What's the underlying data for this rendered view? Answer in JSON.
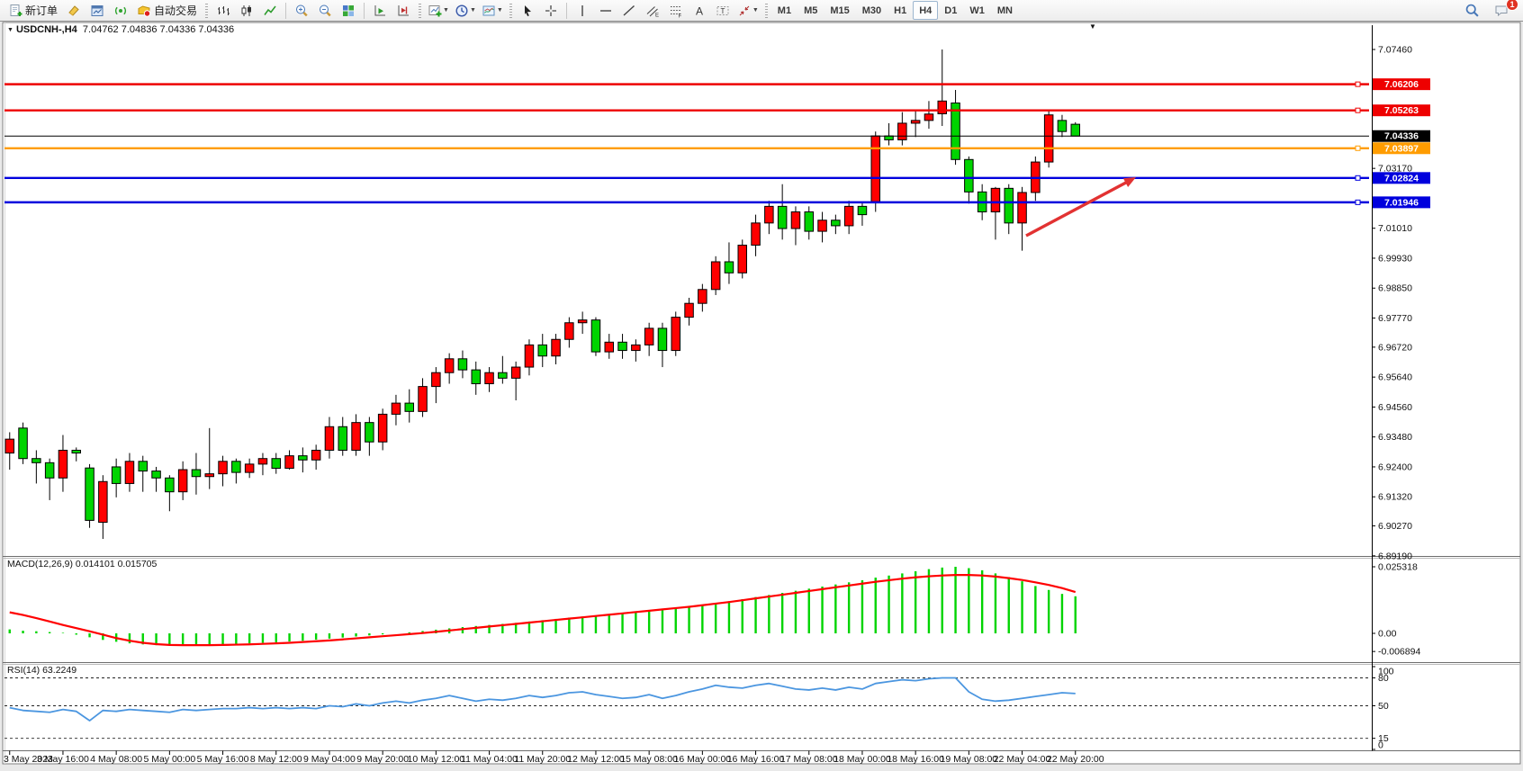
{
  "toolbar": {
    "new_order_label": "新订单",
    "auto_trading_label": "自动交易",
    "timeframes": [
      "M1",
      "M5",
      "M15",
      "M30",
      "H1",
      "H4",
      "D1",
      "W1",
      "MN"
    ],
    "active_timeframe": "H4",
    "notification_count": "1",
    "icons": [
      "new-order",
      "eraser",
      "chart-window",
      "signal",
      "auto-trading",
      "bar-chart",
      "candlestick-chart",
      "line-chart",
      "zoom-in",
      "zoom-out",
      "tile-windows",
      "auto-scroll",
      "chart-shift",
      "indicators",
      "periods",
      "templates",
      "cursor",
      "crosshair",
      "vertical-line",
      "horizontal-line",
      "trendline",
      "equidistant-channel",
      "fibonacci-retracement",
      "text",
      "text-label",
      "arrow-objects",
      "search",
      "chat"
    ]
  },
  "chart_window": {
    "menu_arrow": "▼",
    "symbol_period": "USDCNH-,H4",
    "ohlc": "7.04762 7.04836 7.04336 7.04336"
  },
  "chart_data": {
    "type": "candlestick",
    "symbol": "USDCNH",
    "timeframe": "H4",
    "up_color": "#ff0000",
    "down_color": "#00d400",
    "x_labels": [
      "3 May 2023",
      "3 May 16:00",
      "4 May 08:00",
      "5 May 00:00",
      "5 May 16:00",
      "8 May 12:00",
      "9 May 04:00",
      "9 May 20:00",
      "10 May 12:00",
      "11 May 04:00",
      "11 May 20:00",
      "12 May 12:00",
      "15 May 08:00",
      "16 May 00:00",
      "16 May 16:00",
      "17 May 08:00",
      "18 May 00:00",
      "18 May 16:00",
      "19 May 08:00",
      "22 May 04:00",
      "22 May 20:00"
    ],
    "price_axis_ticks": [
      "7.07460",
      "7.03170",
      "7.01010",
      "6.99930",
      "6.98850",
      "6.97770",
      "6.96720",
      "6.95640",
      "6.94560",
      "6.93480",
      "6.92400",
      "6.91320",
      "6.90270",
      "6.89190"
    ],
    "levels": [
      {
        "price": "7.06206",
        "color": "#ee0000",
        "kind": "resistance"
      },
      {
        "price": "7.05263",
        "color": "#ee0000",
        "kind": "resistance"
      },
      {
        "price": "7.04336",
        "color": "#000000",
        "kind": "current-price"
      },
      {
        "price": "7.03897",
        "color": "#ff9c00",
        "kind": "pivot"
      },
      {
        "price": "7.02824",
        "color": "#0000dd",
        "kind": "support"
      },
      {
        "price": "7.01946",
        "color": "#0000dd",
        "kind": "support"
      }
    ],
    "annotation_arrow": {
      "from": [
        1140,
        262
      ],
      "to": [
        1262,
        197
      ],
      "color": "#e23232"
    },
    "candles": [
      [
        6.929,
        6.9365,
        6.923,
        6.934
      ],
      [
        6.938,
        6.94,
        6.925,
        6.927
      ],
      [
        6.927,
        6.93,
        6.918,
        6.9255
      ],
      [
        6.9255,
        6.927,
        6.912,
        6.92
      ],
      [
        6.92,
        6.9355,
        6.915,
        6.93
      ],
      [
        6.93,
        6.931,
        6.926,
        6.929
      ],
      [
        6.9236,
        6.925,
        6.902,
        6.9047
      ],
      [
        6.904,
        6.921,
        6.898,
        6.9187
      ],
      [
        6.924,
        6.927,
        6.913,
        6.918
      ],
      [
        6.918,
        6.929,
        6.915,
        6.926
      ],
      [
        6.926,
        6.928,
        6.915,
        6.9225
      ],
      [
        6.9225,
        6.924,
        6.915,
        6.92
      ],
      [
        6.92,
        6.921,
        6.908,
        6.915
      ],
      [
        6.915,
        6.926,
        6.912,
        6.923
      ],
      [
        6.923,
        6.929,
        6.914,
        6.9205
      ],
      [
        6.9205,
        6.938,
        6.916,
        6.9215
      ],
      [
        6.9215,
        6.928,
        6.917,
        6.926
      ],
      [
        6.926,
        6.927,
        6.918,
        6.922
      ],
      [
        6.922,
        6.927,
        6.92,
        6.925
      ],
      [
        6.925,
        6.929,
        6.921,
        6.927
      ],
      [
        6.927,
        6.929,
        6.9215,
        6.9235
      ],
      [
        6.9235,
        6.93,
        6.923,
        6.928
      ],
      [
        6.928,
        6.931,
        6.922,
        6.9265
      ],
      [
        6.9265,
        6.932,
        6.923,
        6.93
      ],
      [
        6.93,
        6.942,
        6.927,
        6.9385
      ],
      [
        6.9385,
        6.942,
        6.928,
        6.93
      ],
      [
        6.93,
        6.943,
        6.928,
        6.94
      ],
      [
        6.94,
        6.942,
        6.928,
        6.933
      ],
      [
        6.933,
        6.945,
        6.93,
        6.943
      ],
      [
        6.943,
        6.95,
        6.939,
        6.947
      ],
      [
        6.947,
        6.952,
        6.94,
        6.944
      ],
      [
        6.944,
        6.956,
        6.942,
        6.953
      ],
      [
        6.953,
        6.96,
        6.947,
        6.958
      ],
      [
        6.958,
        6.965,
        6.954,
        6.963
      ],
      [
        6.963,
        6.966,
        6.956,
        6.959
      ],
      [
        6.959,
        6.962,
        6.95,
        6.954
      ],
      [
        6.954,
        6.96,
        6.951,
        6.958
      ],
      [
        6.958,
        6.964,
        6.954,
        6.956
      ],
      [
        6.956,
        6.962,
        6.948,
        6.96
      ],
      [
        6.96,
        6.97,
        6.957,
        6.968
      ],
      [
        6.968,
        6.972,
        6.96,
        6.964
      ],
      [
        6.964,
        6.972,
        6.961,
        6.97
      ],
      [
        6.97,
        6.978,
        6.967,
        6.976
      ],
      [
        6.976,
        6.98,
        6.972,
        6.977
      ],
      [
        6.977,
        6.978,
        6.964,
        6.9655
      ],
      [
        6.9655,
        6.972,
        6.963,
        6.969
      ],
      [
        6.969,
        6.972,
        6.963,
        6.966
      ],
      [
        6.966,
        6.97,
        6.962,
        6.968
      ],
      [
        6.968,
        6.976,
        6.964,
        6.974
      ],
      [
        6.974,
        6.976,
        6.96,
        6.966
      ],
      [
        6.966,
        6.98,
        6.964,
        6.978
      ],
      [
        6.978,
        6.985,
        6.975,
        6.983
      ],
      [
        6.983,
        6.99,
        6.98,
        6.988
      ],
      [
        6.988,
        7.0,
        6.986,
        6.998
      ],
      [
        6.998,
        7.005,
        6.99,
        6.994
      ],
      [
        6.994,
        7.006,
        6.992,
        7.004
      ],
      [
        7.004,
        7.015,
        7.0,
        7.012
      ],
      [
        7.012,
        7.02,
        7.008,
        7.018
      ],
      [
        7.018,
        7.026,
        7.006,
        7.01
      ],
      [
        7.01,
        7.018,
        7.004,
        7.016
      ],
      [
        7.016,
        7.018,
        7.006,
        7.009
      ],
      [
        7.009,
        7.016,
        7.005,
        7.013
      ],
      [
        7.013,
        7.015,
        7.008,
        7.011
      ],
      [
        7.011,
        7.02,
        7.008,
        7.018
      ],
      [
        7.018,
        7.0195,
        7.011,
        7.015
      ],
      [
        7.0197,
        7.045,
        7.016,
        7.0434
      ],
      [
        7.0434,
        7.048,
        7.04,
        7.042
      ],
      [
        7.042,
        7.052,
        7.04,
        7.048
      ],
      [
        7.048,
        7.053,
        7.043,
        7.049
      ],
      [
        7.049,
        7.056,
        7.046,
        7.0513
      ],
      [
        7.0514,
        7.0746,
        7.047,
        7.056
      ],
      [
        7.0553,
        7.06,
        7.033,
        7.0349
      ],
      [
        7.0349,
        7.036,
        7.019,
        7.0232
      ],
      [
        7.0232,
        7.026,
        7.013,
        7.016
      ],
      [
        7.016,
        7.025,
        7.006,
        7.0245
      ],
      [
        7.0245,
        7.026,
        7.008,
        7.012
      ],
      [
        7.012,
        7.025,
        7.002,
        7.023
      ],
      [
        7.023,
        7.036,
        7.02,
        7.034
      ],
      [
        7.034,
        7.053,
        7.032,
        7.051
      ],
      [
        7.049,
        7.051,
        7.043,
        7.045
      ],
      [
        7.04762,
        7.04836,
        7.04336,
        7.04336
      ]
    ],
    "macd": {
      "label": "MACD(12,26,9) 0.014101 0.015705",
      "axis_ticks": [
        "0.025318",
        "0.00",
        "-0.006894"
      ],
      "hist_color": "#00d400",
      "signal_color": "#ff0000",
      "hist": [
        0.0015,
        0.001,
        0.0008,
        0.0005,
        0.0002,
        -0.0005,
        -0.0015,
        -0.0025,
        -0.0032,
        -0.0038,
        -0.0042,
        -0.0045,
        -0.0046,
        -0.0045,
        -0.0044,
        -0.0043,
        -0.0042,
        -0.004,
        -0.0038,
        -0.0036,
        -0.0034,
        -0.0031,
        -0.0028,
        -0.0024,
        -0.002,
        -0.0016,
        -0.0012,
        -0.0008,
        -0.0004,
        0.0,
        0.0004,
        0.0009,
        0.0014,
        0.0019,
        0.0024,
        0.0028,
        0.0032,
        0.0036,
        0.004,
        0.0045,
        0.005,
        0.0055,
        0.006,
        0.0064,
        0.0068,
        0.0072,
        0.0076,
        0.008,
        0.0085,
        0.009,
        0.0096,
        0.0102,
        0.0108,
        0.0115,
        0.0122,
        0.013,
        0.0138,
        0.0146,
        0.0154,
        0.0162,
        0.017,
        0.0178,
        0.0186,
        0.0194,
        0.0202,
        0.0212,
        0.022,
        0.0228,
        0.0236,
        0.0244,
        0.025,
        0.0253,
        0.0248,
        0.024,
        0.0228,
        0.0214,
        0.0198,
        0.018,
        0.0165,
        0.015,
        0.0141
      ],
      "signal": [
        0.008,
        0.007,
        0.0058,
        0.0045,
        0.0032,
        0.002,
        0.0008,
        -0.0005,
        -0.0018,
        -0.0028,
        -0.0036,
        -0.0041,
        -0.0044,
        -0.0045,
        -0.0045,
        -0.0045,
        -0.0044,
        -0.0043,
        -0.0042,
        -0.004,
        -0.0038,
        -0.0036,
        -0.0033,
        -0.003,
        -0.0027,
        -0.0023,
        -0.0019,
        -0.0015,
        -0.0011,
        -0.0007,
        -0.0003,
        0.0001,
        0.0006,
        0.0011,
        0.0016,
        0.0021,
        0.0026,
        0.0031,
        0.0036,
        0.0041,
        0.0046,
        0.0051,
        0.0056,
        0.0061,
        0.0066,
        0.0071,
        0.0076,
        0.0081,
        0.0086,
        0.0091,
        0.0096,
        0.0101,
        0.0107,
        0.0113,
        0.0119,
        0.0126,
        0.0133,
        0.014,
        0.0147,
        0.0154,
        0.0161,
        0.0168,
        0.0175,
        0.0182,
        0.0189,
        0.0196,
        0.0202,
        0.0208,
        0.0213,
        0.0217,
        0.022,
        0.0222,
        0.0222,
        0.022,
        0.0216,
        0.021,
        0.0203,
        0.0194,
        0.0184,
        0.0172,
        0.0157
      ]
    },
    "rsi": {
      "label": "RSI(14) 63.2249",
      "axis_ticks": [
        "100",
        "80",
        "50",
        "15",
        "0"
      ],
      "dashed_levels": [
        80,
        50,
        15
      ],
      "line_color": "#4b96e0",
      "values": [
        48,
        45,
        44,
        43,
        46,
        44,
        34,
        45,
        44,
        46,
        45,
        44,
        43,
        46,
        45,
        46,
        47,
        47,
        48,
        47,
        48,
        47,
        48,
        47,
        50,
        49,
        52,
        50,
        53,
        55,
        53,
        56,
        58,
        61,
        58,
        55,
        57,
        56,
        58,
        61,
        59,
        61,
        64,
        65,
        62,
        60,
        58,
        59,
        62,
        58,
        61,
        65,
        68,
        72,
        70,
        69,
        72,
        74,
        71,
        68,
        67,
        69,
        67,
        70,
        68,
        74,
        76,
        78,
        77,
        79,
        80,
        80,
        65,
        57,
        55,
        56,
        58,
        60,
        62,
        64,
        63.2
      ]
    }
  }
}
